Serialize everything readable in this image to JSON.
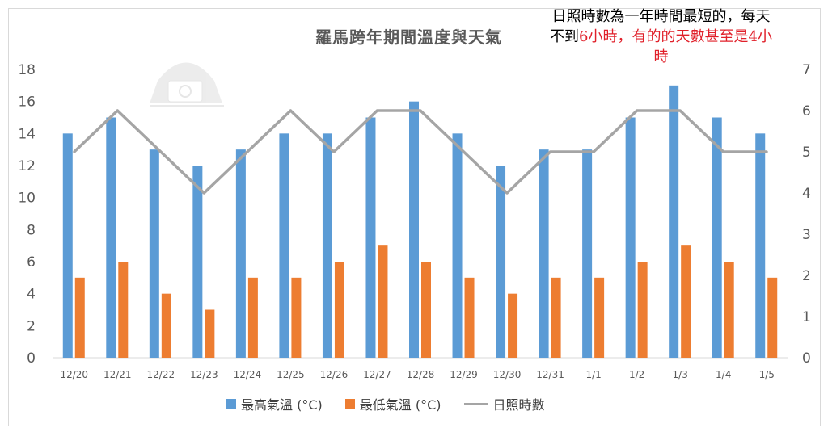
{
  "chart_data": {
    "type": "bar+line",
    "title": "羅馬跨年期間溫度與天氣",
    "annotation": {
      "black": "日照時數為一年時間最短的，每天不到",
      "red": "6小時，有的的天數甚至是4小時"
    },
    "categories": [
      "12/20",
      "12/21",
      "12/22",
      "12/23",
      "12/24",
      "12/25",
      "12/26",
      "12/27",
      "12/28",
      "12/29",
      "12/30",
      "12/31",
      "1/1",
      "1/2",
      "1/3",
      "1/4",
      "1/5"
    ],
    "series": [
      {
        "name": "最高氣溫 (°C)",
        "type": "bar",
        "axis": "left",
        "color": "#5b9bd5",
        "values": [
          14,
          15,
          13,
          12,
          13,
          14,
          14,
          15,
          16,
          14,
          12,
          13,
          13,
          15,
          17,
          15,
          14
        ]
      },
      {
        "name": "最低氣溫 (°C)",
        "type": "bar",
        "axis": "left",
        "color": "#ed7d31",
        "values": [
          5,
          6,
          4,
          3,
          5,
          5,
          6,
          7,
          6,
          5,
          4,
          5,
          5,
          6,
          7,
          6,
          5
        ]
      },
      {
        "name": "日照時數",
        "type": "line",
        "axis": "right",
        "color": "#a5a5a5",
        "values": [
          5,
          6,
          5,
          4,
          5,
          6,
          5,
          6,
          6,
          5,
          4,
          5,
          5,
          6,
          6,
          5,
          5
        ]
      }
    ],
    "ylim_left": [
      0,
      18
    ],
    "yticks_left": [
      0,
      2,
      4,
      6,
      8,
      10,
      12,
      14,
      16,
      18
    ],
    "ylim_right": [
      0,
      7
    ],
    "yticks_right": [
      0,
      1,
      2,
      3,
      4,
      5,
      6,
      7
    ],
    "grid": false,
    "legend": "bottom"
  }
}
